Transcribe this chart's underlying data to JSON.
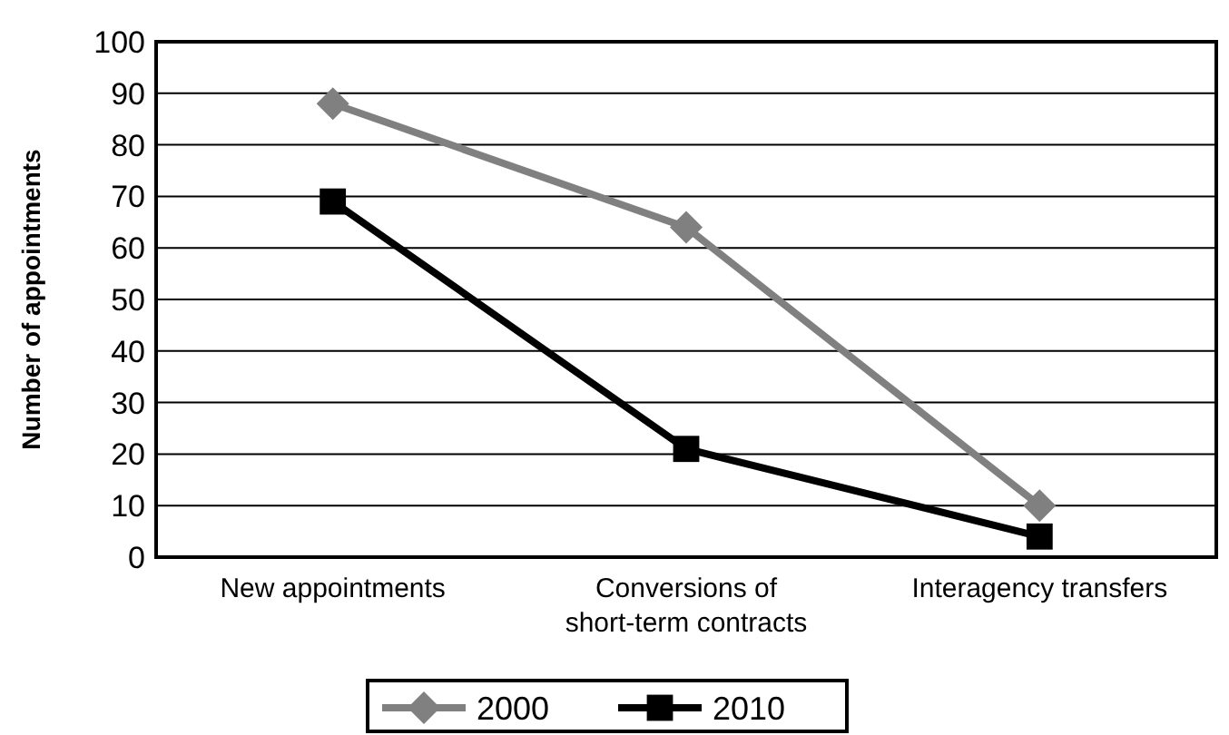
{
  "chart_data": {
    "type": "line",
    "ylabel": "Number of appointments",
    "categories": [
      "New appointments",
      "Conversions of short-term contracts",
      "Interagency transfers"
    ],
    "series": [
      {
        "name": "2000",
        "color": "#808080",
        "values": [
          88,
          64,
          10
        ],
        "marker": "diamond"
      },
      {
        "name": "2010",
        "color": "#000000",
        "values": [
          69,
          21,
          4
        ],
        "marker": "square"
      }
    ],
    "ylim": [
      0,
      100
    ],
    "yticks": [
      0,
      10,
      20,
      30,
      40,
      50,
      60,
      70,
      80,
      90,
      100
    ],
    "grid": "y",
    "legend": "bottom",
    "line_style": "solid"
  }
}
